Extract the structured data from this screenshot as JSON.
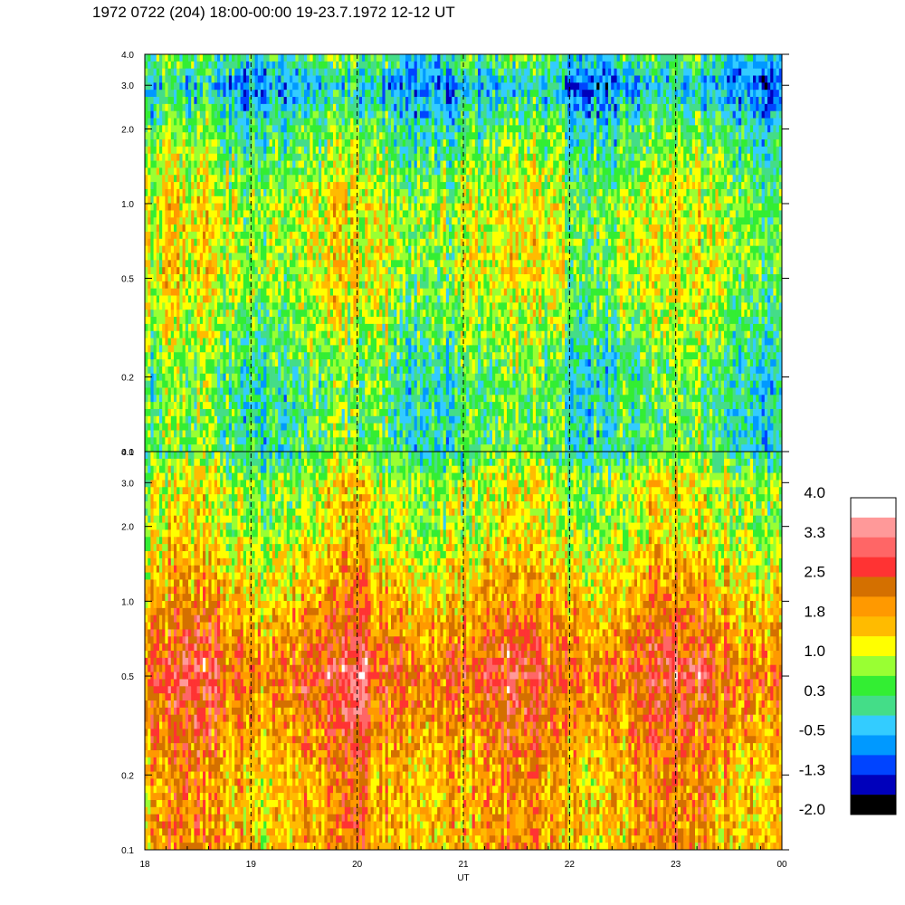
{
  "page": {
    "title": "1972 0722 (204) 18:00-00:00 19-23.7.1972  12-12 UT"
  },
  "chart_data": {
    "type": "heatmap",
    "title": "1972 0722 (204) 18:00-00:00 19-23.7.1972  12-12 UT",
    "xlabel": "UT",
    "x_range": [
      18,
      24
    ],
    "x_tick_labels": [
      "18",
      "19",
      "20",
      "21",
      "22",
      "23",
      "00"
    ],
    "y_scale": "log",
    "y_tick_labels": [
      "0.1",
      "0.2",
      "0.5",
      "1.0",
      "2.0",
      "3.0",
      "4.0"
    ],
    "y_tick_values": [
      0.1,
      0.2,
      0.5,
      1.0,
      2.0,
      3.0,
      4.0
    ],
    "ylim": [
      0.1,
      4.0
    ],
    "vertical_dashed_lines_at_hours": [
      19,
      20,
      21,
      22,
      23
    ],
    "panels": [
      {
        "name": "",
        "dominant_level_by_frequency": [
          {
            "freq": 0.1,
            "level": 0.3
          },
          {
            "freq": 0.2,
            "level": 0.3
          },
          {
            "freq": 0.5,
            "level": 1.0
          },
          {
            "freq": 1.0,
            "level": 1.0
          },
          {
            "freq": 2.0,
            "level": 0.3
          },
          {
            "freq": 3.0,
            "level": -0.5
          },
          {
            "freq": 4.0,
            "level": 0.3
          }
        ]
      },
      {
        "name": "",
        "dominant_level_by_frequency": [
          {
            "freq": 0.1,
            "level": 1.8
          },
          {
            "freq": 0.2,
            "level": 1.8
          },
          {
            "freq": 0.5,
            "level": 2.5
          },
          {
            "freq": 1.0,
            "level": 1.8
          },
          {
            "freq": 2.0,
            "level": 1.0
          },
          {
            "freq": 3.0,
            "level": 1.0
          },
          {
            "freq": 4.0,
            "level": 0.3
          }
        ]
      }
    ],
    "colorbar": {
      "labels": [
        "4.0",
        "3.3",
        "2.5",
        "1.8",
        "1.0",
        "0.3",
        "-0.5",
        "-1.3",
        "-2.0"
      ],
      "range": [
        -2.0,
        4.0
      ],
      "colors_top_to_bottom": [
        "#ffffff",
        "#ff9999",
        "#ff6666",
        "#ff3333",
        "#d47000",
        "#ff9900",
        "#ffbb00",
        "#ffff00",
        "#99ff33",
        "#33ee33",
        "#44dd88",
        "#33ccff",
        "#0099ff",
        "#0044ff",
        "#0000bb",
        "#000000"
      ]
    }
  }
}
